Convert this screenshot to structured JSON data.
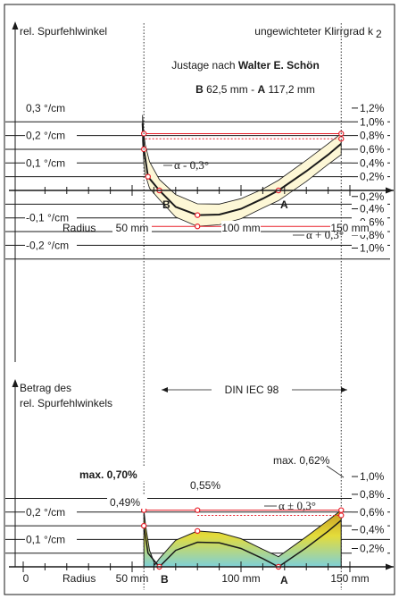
{
  "colors": {
    "ink": "#1a1a1a",
    "red": "#e8202a",
    "band_fill": "#fdf7d6",
    "gradient_top": "#c79a22",
    "gradient_mid": "#e4dc3a",
    "gradient_bottom": "#7ed0d8"
  },
  "chart_data": [
    {
      "type": "line",
      "title": "Justage nach Walter E. Schön",
      "title_prefix": "Justage nach ",
      "title_name": "Walter E. Schön",
      "subtitle": {
        "b_label": "B",
        "b_value": " 62,5 mm - ",
        "a_label": "A",
        "a_value": " 117,2 mm"
      },
      "ylabel_left": "rel. Spurfehlwinkel",
      "ylabel_right": "ungewichteter Klirrgrad k",
      "ylabel_right_sub": "2",
      "xlabel": "Radius",
      "x_tick_labels": [
        "50 mm",
        "100 mm",
        "150 mm"
      ],
      "x_ticks": [
        50,
        100,
        150
      ],
      "xlim": [
        0,
        155
      ],
      "left_ticks": [
        {
          "value": 0.3,
          "label": "0,3 °/cm"
        },
        {
          "value": 0.2,
          "label": "0,2 °/cm"
        },
        {
          "value": 0.1,
          "label": "0,1 °/cm"
        },
        {
          "value": -0.1,
          "label": "-0,1 °/cm"
        },
        {
          "value": -0.2,
          "label": "-0,2 °/cm"
        }
      ],
      "right_ticks_upper": [
        "1,2%",
        "1,0%",
        "0,8%",
        "0,6%",
        "0,4%",
        "0,2%"
      ],
      "right_ticks_lower": [
        "0,2%",
        "0,4%",
        "0,6%",
        "0,8%",
        "1,0%"
      ],
      "point_labels": {
        "b": "B",
        "a": "A"
      },
      "annotations": {
        "minus": "α - 0,3°",
        "plus": "α + 0,3°"
      },
      "series": [
        {
          "x": [
            55.4,
            57.3,
            62.5,
            70,
            80,
            90,
            100,
            110,
            117.2,
            130,
            140,
            146
          ],
          "y": [
            0.15,
            0.05,
            0,
            -0.06,
            -0.09,
            -0.088,
            -0.067,
            -0.03,
            0,
            0.07,
            0.13,
            0.17
          ]
        },
        {
          "x": [
            55.4,
            56,
            58,
            62.5,
            70,
            80,
            90,
            100,
            110,
            117.2,
            130,
            140,
            146
          ],
          "y": [
            0.207,
            0.168,
            0.105,
            0.04,
            -0.015,
            -0.049,
            -0.05,
            -0.03,
            0.005,
            0.037,
            0.11,
            0.17,
            0.207
          ]
        },
        {
          "x": [
            55.4,
            56,
            58,
            62.5,
            70,
            80,
            90,
            100,
            110,
            117.2,
            130,
            140,
            146
          ],
          "y": [
            0.095,
            0.06,
            0.008,
            -0.033,
            -0.097,
            -0.131,
            -0.125,
            -0.103,
            -0.064,
            -0.037,
            0.033,
            0.095,
            0.13
          ]
        }
      ],
      "reference_lines": [
        0.207,
        0.188,
        -0.131
      ]
    },
    {
      "type": "area",
      "title": "DIN IEC 98",
      "ylabel_left_1": "Betrag des",
      "ylabel_left_2": "rel. Spurfehlwinkels",
      "xlabel": "Radius",
      "x_tick_labels": [
        "0",
        "50 mm",
        "100 mm",
        "150 mm"
      ],
      "x_ticks": [
        0,
        50,
        100,
        150
      ],
      "xlim": [
        0,
        155
      ],
      "left_ticks": [
        {
          "value": 0.2,
          "label": "0,2 °/cm"
        },
        {
          "value": 0.1,
          "label": "0,1 °/cm"
        }
      ],
      "right_ticks": [
        "1,0%",
        "0,8%",
        "0,6%",
        "0,4%",
        "0,2%"
      ],
      "point_labels": {
        "b": "B",
        "a": "A"
      },
      "annotations": {
        "max_left": "max. 0,70%",
        "val_049": "0,49%",
        "val_055": "0,55%",
        "max_right": "max. 0,62%",
        "alpha": "α ± 0,3°"
      },
      "envelope": {
        "x": [
          55.4,
          56,
          58,
          62.5,
          70,
          80,
          90,
          100,
          110,
          117.2,
          130,
          140,
          146
        ],
        "y": [
          0.207,
          0.168,
          0.105,
          0.04,
          0.097,
          0.131,
          0.125,
          0.103,
          0.064,
          0.037,
          0.11,
          0.17,
          0.207
        ]
      },
      "nominal": {
        "x": [
          55.4,
          57.3,
          62.5,
          70,
          80,
          90,
          100,
          110,
          117.2,
          130,
          140,
          146
        ],
        "y": [
          0.15,
          0.05,
          0,
          0.06,
          0.09,
          0.088,
          0.067,
          0.03,
          0,
          0.07,
          0.13,
          0.17
        ]
      },
      "reference_lines": [
        0.207,
        0.188
      ]
    }
  ]
}
